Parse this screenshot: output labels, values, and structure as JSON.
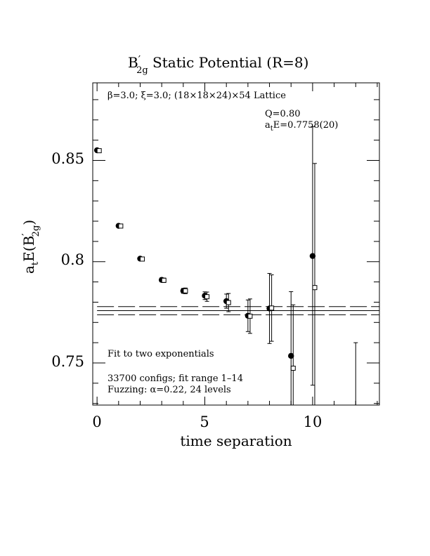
{
  "chart_data": {
    "type": "scatter",
    "title": "B′₂g Static Potential (R=8)",
    "title_main": "B",
    "title_prime": "′",
    "title_sub": "2g",
    "title_rest": " Static Potential (R=8)",
    "xlabel": "time separation",
    "ylabel": "a_t E(B′_2g)",
    "ylabel_main_a": "a",
    "ylabel_sub_t": "t",
    "ylabel_mid": "E(B",
    "ylabel_prime": "′",
    "ylabel_sub_2g": "2g",
    "ylabel_end": ")",
    "xlim": [
      -0.2,
      13.1
    ],
    "ylim": [
      0.7292,
      0.8883
    ],
    "x_ticks": [
      0,
      5,
      10
    ],
    "y_ticks": [
      0.75,
      0.8,
      0.85
    ],
    "x_tick_labels": [
      "0",
      "5",
      "10"
    ],
    "y_tick_labels": [
      "0.75",
      "0.8",
      "0.85"
    ],
    "x_minor_step": 1,
    "y_minor_step": 0.01,
    "grid": false,
    "annotations": {
      "lattice": "β=3.0; ξ=3.0; (18×18×24)×54 Lattice",
      "q": "Q=0.80",
      "ate_a": "a",
      "ate_t": "t",
      "ate_value": "E=0.7758(20)",
      "fit": "Fit to two exponentials",
      "configs": "33700 configs; fit range 1–14",
      "fuzzing": "Fuzzing: α=0.22, 24 levels"
    },
    "fit": {
      "value": 0.7758,
      "error": 0.002,
      "x_range": [
        0,
        13.1
      ]
    },
    "series": [
      {
        "marker": "filled-circle",
        "points": [
          {
            "x": 0,
            "y": 0.855,
            "err": 0.0003
          },
          {
            "x": 1,
            "y": 0.8177,
            "err": 0.0005
          },
          {
            "x": 2,
            "y": 0.8015,
            "err": 0.0008
          },
          {
            "x": 3,
            "y": 0.791,
            "err": 0.001
          },
          {
            "x": 4,
            "y": 0.7856,
            "err": 0.0012
          },
          {
            "x": 5,
            "y": 0.7832,
            "err": 0.0019
          },
          {
            "x": 6,
            "y": 0.7805,
            "err": 0.0035
          },
          {
            "x": 7,
            "y": 0.7733,
            "err": 0.0078
          },
          {
            "x": 8,
            "y": 0.7769,
            "err": 0.0173
          },
          {
            "x": 9,
            "y": 0.7535,
            "err": 0.0317
          },
          {
            "x": 10,
            "y": 0.8028,
            "err": 0.0638
          },
          {
            "x": 12,
            "y": null,
            "err_low": 0.729,
            "err_high": 0.76
          }
        ]
      },
      {
        "marker": "open-square",
        "points": [
          {
            "x": 0.1,
            "y": 0.8548,
            "err": 0.0004
          },
          {
            "x": 1.1,
            "y": 0.8176,
            "err": 0.0006
          },
          {
            "x": 2.1,
            "y": 0.8013,
            "err": 0.0009
          },
          {
            "x": 3.1,
            "y": 0.7908,
            "err": 0.0011
          },
          {
            "x": 4.1,
            "y": 0.7856,
            "err": 0.0014
          },
          {
            "x": 5.1,
            "y": 0.7827,
            "err": 0.0023
          },
          {
            "x": 6.1,
            "y": 0.7798,
            "err": 0.0045
          },
          {
            "x": 7.1,
            "y": 0.7731,
            "err": 0.0085
          },
          {
            "x": 8.1,
            "y": 0.7771,
            "err": 0.0164
          },
          {
            "x": 9.1,
            "y": 0.7474,
            "err": 0.0313
          },
          {
            "x": 10.1,
            "y": 0.7872,
            "err": 0.0613
          }
        ]
      }
    ]
  }
}
